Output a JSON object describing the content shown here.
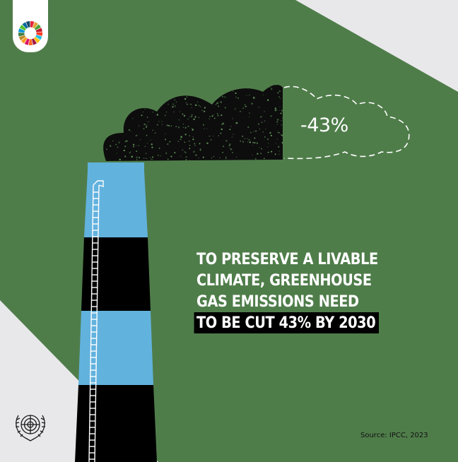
{
  "reduction_label": "-43%",
  "reduction_fraction": 0.43,
  "headline": {
    "line1": "TO PRESERVE A LIVABLE",
    "line2": "CLIMATE, GREENHOUSE",
    "line3": "GAS EMISSIONS NEED",
    "line4_highlight": "TO BE CUT 43% BY 2030"
  },
  "source": "Source: IPCC, 2023",
  "colors": {
    "background": "#4f7d4a",
    "corner": "#e8e8ea",
    "chimney_blue": "#62b2de",
    "chimney_black": "#000000",
    "smoke": "#0d0d0d",
    "text": "#ffffff"
  },
  "icons": {
    "sdg_logo": "sdg-wheel-icon",
    "un_logo": "un-emblem-icon"
  }
}
